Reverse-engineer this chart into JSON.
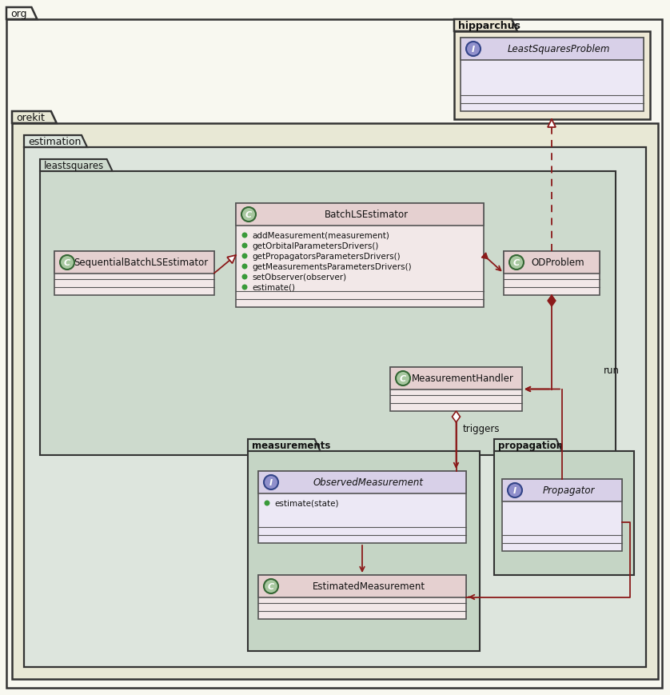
{
  "bg_white": "#f8f8f0",
  "bg_orekit": "#e8e8d5",
  "bg_estimation": "#dde5dd",
  "bg_leastsquares": "#cddacd",
  "bg_measurements": "#c5d5c5",
  "bg_propagation": "#c5d5c5",
  "bg_hipparchus": "#ede8d5",
  "bg_class_hdr": "#e5d0d0",
  "bg_class_body": "#f2e8e8",
  "bg_iface_hdr": "#d8d0e8",
  "bg_iface_body": "#ece8f5",
  "border_dark": "#333333",
  "border_mid": "#555555",
  "arrow_color": "#8b1a1a",
  "dot_color": "#3a9a3a",
  "icon_c_fill": "#a8c8a0",
  "icon_i_fill": "#9090cc",
  "icon_border": "#336633",
  "icon_i_border": "#334488",
  "text_dark": "#111111",
  "methods": [
    "addMeasurement(measurement)",
    "getOrbitalParametersDrivers()",
    "getPropagatorsParametersDrivers()",
    "getMeasurementsParametersDrivers()",
    "setObserver(observer)",
    "estimate()"
  ]
}
